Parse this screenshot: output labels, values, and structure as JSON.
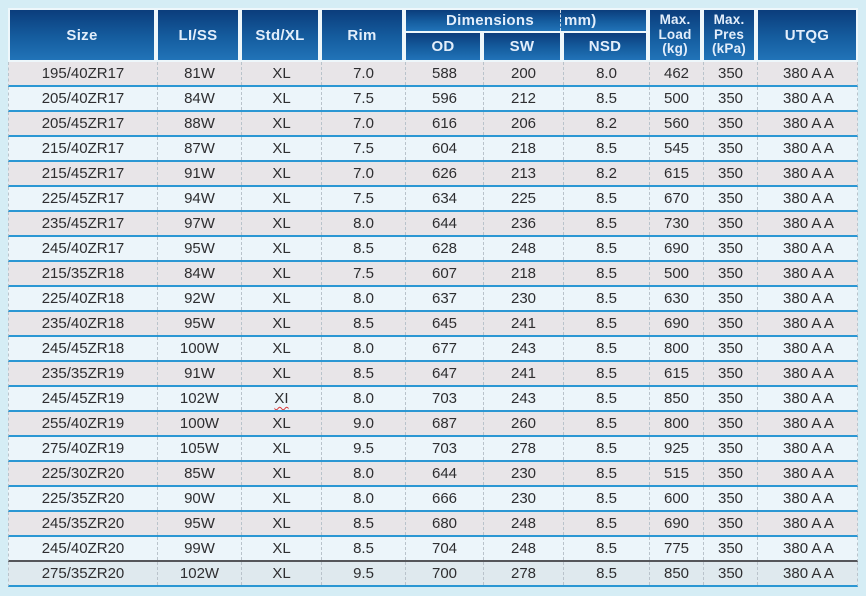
{
  "colors": {
    "page_bg": "#d5edf5",
    "header_top": "#0b3d7c",
    "header_bottom": "#2173b8",
    "header_text": "#e3eefb",
    "row_odd": "#e8e5e8",
    "row_even": "#ecf5fa",
    "row_last": "#dfe9ee",
    "separator": "#2b97d3",
    "dark_line": "#55565a",
    "squiggle": "#d93838"
  },
  "table": {
    "header": {
      "size": "Size",
      "liss": "LI/SS",
      "stdxl": "Std/XL",
      "rim": "Rim",
      "dimensions_label": "Dimensions",
      "dimensions_unit": "mm)",
      "od": "OD",
      "sw": "SW",
      "nsd": "NSD",
      "max_load": "Max.\nLoad\n(kg)",
      "max_pres": "Max.\nPres\n(kPa)",
      "utqg": "UTQG"
    },
    "column_keys": [
      "size",
      "liss",
      "std",
      "rim",
      "od",
      "sw",
      "nsd",
      "load",
      "pres",
      "utqg"
    ],
    "rows": [
      {
        "size": "195/40ZR17",
        "liss": "81W",
        "std": "XL",
        "rim": "7.0",
        "od": "588",
        "sw": "200",
        "nsd": "8.0",
        "load": "462",
        "pres": "350",
        "utqg": "380 A A"
      },
      {
        "size": "205/40ZR17",
        "liss": "84W",
        "std": "XL",
        "rim": "7.5",
        "od": "596",
        "sw": "212",
        "nsd": "8.5",
        "load": "500",
        "pres": "350",
        "utqg": "380 A A"
      },
      {
        "size": "205/45ZR17",
        "liss": "88W",
        "std": "XL",
        "rim": "7.0",
        "od": "616",
        "sw": "206",
        "nsd": "8.2",
        "load": "560",
        "pres": "350",
        "utqg": "380 A A"
      },
      {
        "size": "215/40ZR17",
        "liss": "87W",
        "std": "XL",
        "rim": "7.5",
        "od": "604",
        "sw": "218",
        "nsd": "8.5",
        "load": "545",
        "pres": "350",
        "utqg": "380 A A"
      },
      {
        "size": "215/45ZR17",
        "liss": "91W",
        "std": "XL",
        "rim": "7.0",
        "od": "626",
        "sw": "213",
        "nsd": "8.2",
        "load": "615",
        "pres": "350",
        "utqg": "380 A A"
      },
      {
        "size": "225/45ZR17",
        "liss": "94W",
        "std": "XL",
        "rim": "7.5",
        "od": "634",
        "sw": "225",
        "nsd": "8.5",
        "load": "670",
        "pres": "350",
        "utqg": "380 A A"
      },
      {
        "size": "235/45ZR17",
        "liss": "97W",
        "std": "XL",
        "rim": "8.0",
        "od": "644",
        "sw": "236",
        "nsd": "8.5",
        "load": "730",
        "pres": "350",
        "utqg": "380 A A"
      },
      {
        "size": "245/40ZR17",
        "liss": "95W",
        "std": "XL",
        "rim": "8.5",
        "od": "628",
        "sw": "248",
        "nsd": "8.5",
        "load": "690",
        "pres": "350",
        "utqg": "380 A A"
      },
      {
        "size": "215/35ZR18",
        "liss": "84W",
        "std": "XL",
        "rim": "7.5",
        "od": "607",
        "sw": "218",
        "nsd": "8.5",
        "load": "500",
        "pres": "350",
        "utqg": "380 A A"
      },
      {
        "size": "225/40ZR18",
        "liss": "92W",
        "std": "XL",
        "rim": "8.0",
        "od": "637",
        "sw": "230",
        "nsd": "8.5",
        "load": "630",
        "pres": "350",
        "utqg": "380 A A"
      },
      {
        "size": "235/40ZR18",
        "liss": "95W",
        "std": "XL",
        "rim": "8.5",
        "od": "645",
        "sw": "241",
        "nsd": "8.5",
        "load": "690",
        "pres": "350",
        "utqg": "380 A A"
      },
      {
        "size": "245/45ZR18",
        "liss": "100W",
        "std": "XL",
        "rim": "8.0",
        "od": "677",
        "sw": "243",
        "nsd": "8.5",
        "load": "800",
        "pres": "350",
        "utqg": "380 A A"
      },
      {
        "size": "235/35ZR19",
        "liss": "91W",
        "std": "XL",
        "rim": "8.5",
        "od": "647",
        "sw": "241",
        "nsd": "8.5",
        "load": "615",
        "pres": "350",
        "utqg": "380 A A"
      },
      {
        "size": "245/45ZR19",
        "liss": "102W",
        "std": "XI",
        "rim": "8.0",
        "od": "703",
        "sw": "243",
        "nsd": "8.5",
        "load": "850",
        "pres": "350",
        "utqg": "380 A A",
        "spellcheck": true
      },
      {
        "size": "255/40ZR19",
        "liss": "100W",
        "std": "XL",
        "rim": "9.0",
        "od": "687",
        "sw": "260",
        "nsd": "8.5",
        "load": "800",
        "pres": "350",
        "utqg": "380 A A"
      },
      {
        "size": "275/40ZR19",
        "liss": "105W",
        "std": "XL",
        "rim": "9.5",
        "od": "703",
        "sw": "278",
        "nsd": "8.5",
        "load": "925",
        "pres": "350",
        "utqg": "380 A A"
      },
      {
        "size": "225/30ZR20",
        "liss": "85W",
        "std": "XL",
        "rim": "8.0",
        "od": "644",
        "sw": "230",
        "nsd": "8.5",
        "load": "515",
        "pres": "350",
        "utqg": "380 A A"
      },
      {
        "size": "225/35ZR20",
        "liss": "90W",
        "std": "XL",
        "rim": "8.0",
        "od": "666",
        "sw": "230",
        "nsd": "8.5",
        "load": "600",
        "pres": "350",
        "utqg": "380 A A"
      },
      {
        "size": "245/35ZR20",
        "liss": "95W",
        "std": "XL",
        "rim": "8.5",
        "od": "680",
        "sw": "248",
        "nsd": "8.5",
        "load": "690",
        "pres": "350",
        "utqg": "380 A A"
      },
      {
        "size": "245/40ZR20",
        "liss": "99W",
        "std": "XL",
        "rim": "8.5",
        "od": "704",
        "sw": "248",
        "nsd": "8.5",
        "load": "775",
        "pres": "350",
        "utqg": "380 A A"
      },
      {
        "size": "275/35ZR20",
        "liss": "102W",
        "std": "XL",
        "rim": "9.5",
        "od": "700",
        "sw": "278",
        "nsd": "8.5",
        "load": "850",
        "pres": "350",
        "utqg": "380 A A"
      }
    ]
  }
}
